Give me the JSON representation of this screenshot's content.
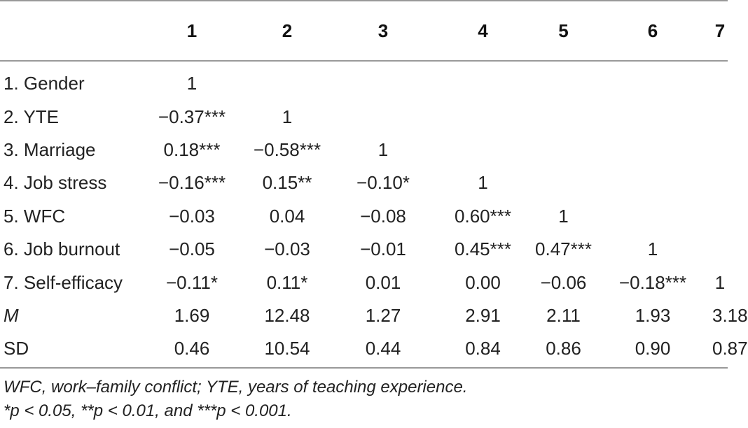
{
  "table": {
    "headers": [
      "",
      "1",
      "2",
      "3",
      "4",
      "5",
      "6",
      "7"
    ],
    "rows": [
      {
        "label": "1. Gender",
        "label_italic": false,
        "cells": [
          "1",
          "",
          "",
          "",
          "",
          "",
          ""
        ]
      },
      {
        "label": "2. YTE",
        "label_italic": false,
        "cells": [
          "−0.37***",
          "1",
          "",
          "",
          "",
          "",
          ""
        ]
      },
      {
        "label": "3. Marriage",
        "label_italic": false,
        "cells": [
          "0.18***",
          "−0.58***",
          "1",
          "",
          "",
          "",
          ""
        ]
      },
      {
        "label": "4. Job stress",
        "label_italic": false,
        "cells": [
          "−0.16***",
          "0.15**",
          "−0.10*",
          "1",
          "",
          "",
          ""
        ]
      },
      {
        "label": "5. WFC",
        "label_italic": false,
        "cells": [
          "−0.03",
          "0.04",
          "−0.08",
          "0.60***",
          "1",
          "",
          ""
        ]
      },
      {
        "label": "6. Job burnout",
        "label_italic": false,
        "cells": [
          "−0.05",
          "−0.03",
          "−0.01",
          "0.45***",
          "0.47***",
          "1",
          ""
        ]
      },
      {
        "label": "7. Self-efficacy",
        "label_italic": false,
        "cells": [
          "−0.11*",
          "0.11*",
          "0.01",
          "0.00",
          "−0.06",
          "−0.18***",
          "1"
        ]
      },
      {
        "label": "M",
        "label_italic": true,
        "cells": [
          "1.69",
          "12.48",
          "1.27",
          "2.91",
          "2.11",
          "1.93",
          "3.18"
        ]
      },
      {
        "label": "SD",
        "label_italic": false,
        "cells": [
          "0.46",
          "10.54",
          "0.44",
          "0.84",
          "0.86",
          "0.90",
          "0.87"
        ]
      }
    ]
  },
  "notes": {
    "abbreviations": "WFC, work–family conflict; YTE, years of teaching experience.",
    "significance": "*p < 0.05, **p < 0.01, and ***p < 0.001."
  }
}
